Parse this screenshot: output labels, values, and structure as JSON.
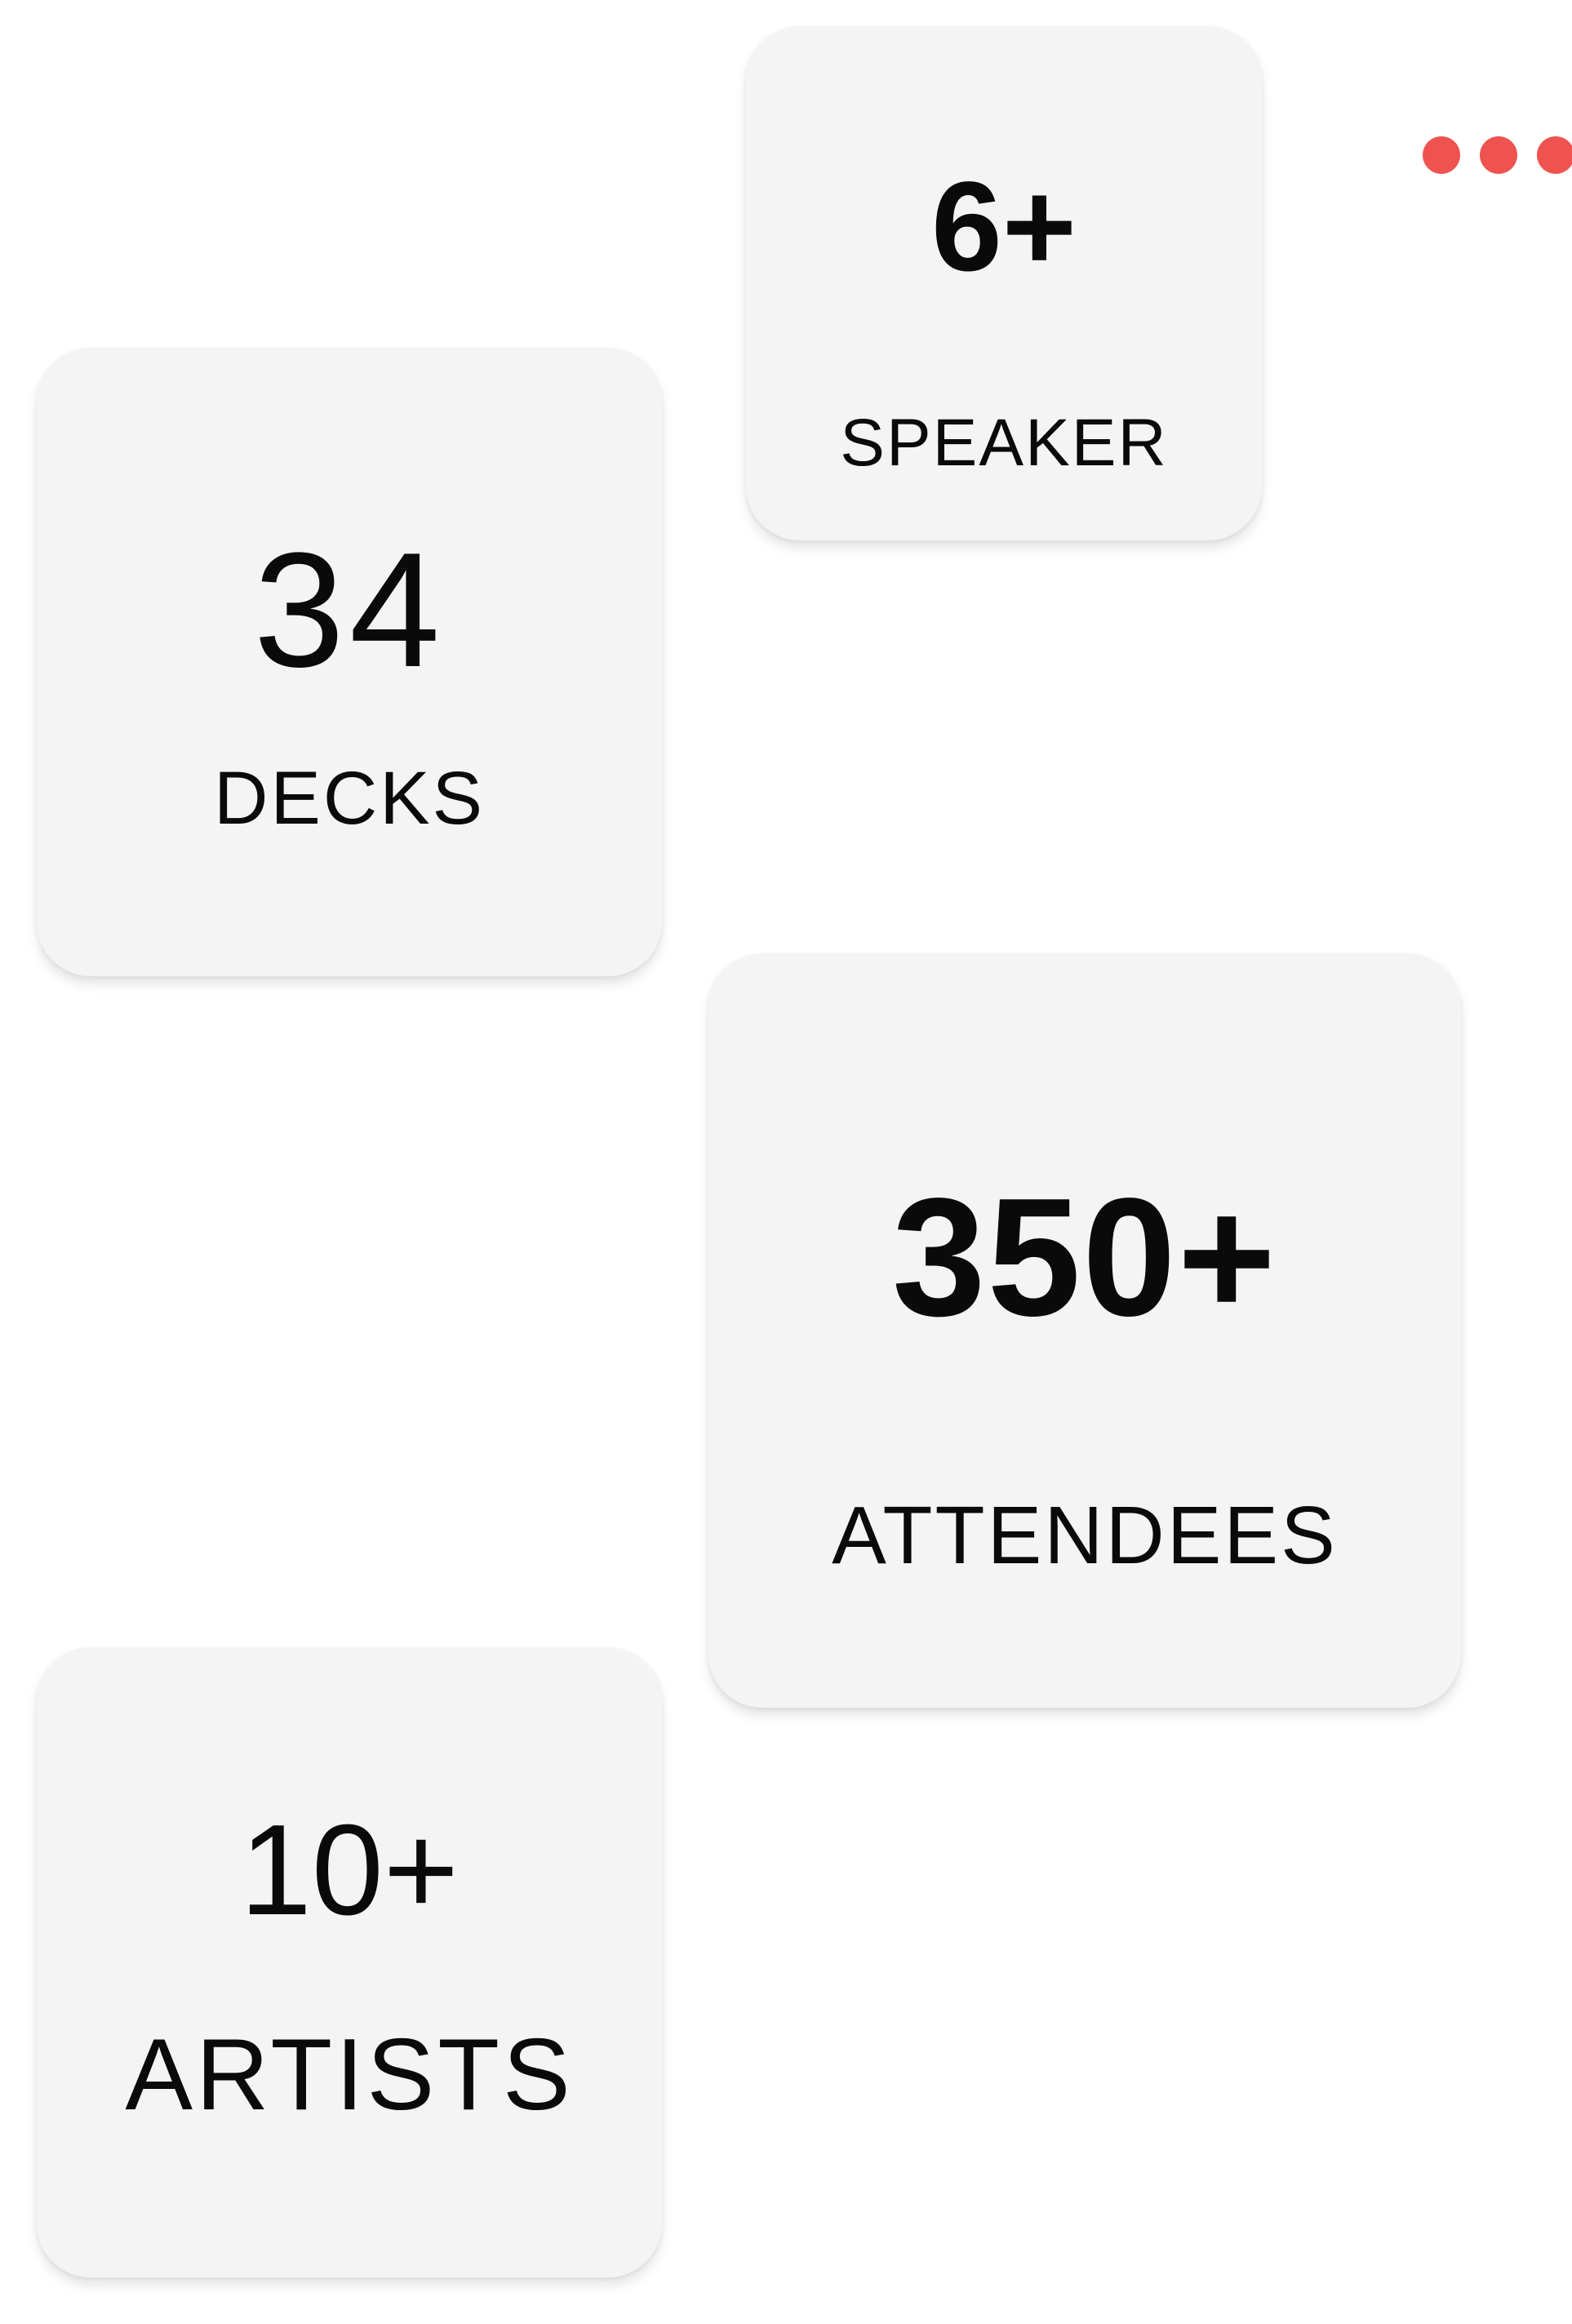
{
  "stats": {
    "speaker": {
      "value": "6+",
      "label": "SPEAKER"
    },
    "decks": {
      "value": "34",
      "label": "DECKS"
    },
    "attendees": {
      "value": "350+",
      "label": "ATTENDEES"
    },
    "artists": {
      "value": "10+",
      "label": "ARTISTS"
    }
  },
  "decor": {
    "dots_icon": "more-dots-icon",
    "dot_color": "#ee5350",
    "card_background": "#f4f4f4"
  }
}
